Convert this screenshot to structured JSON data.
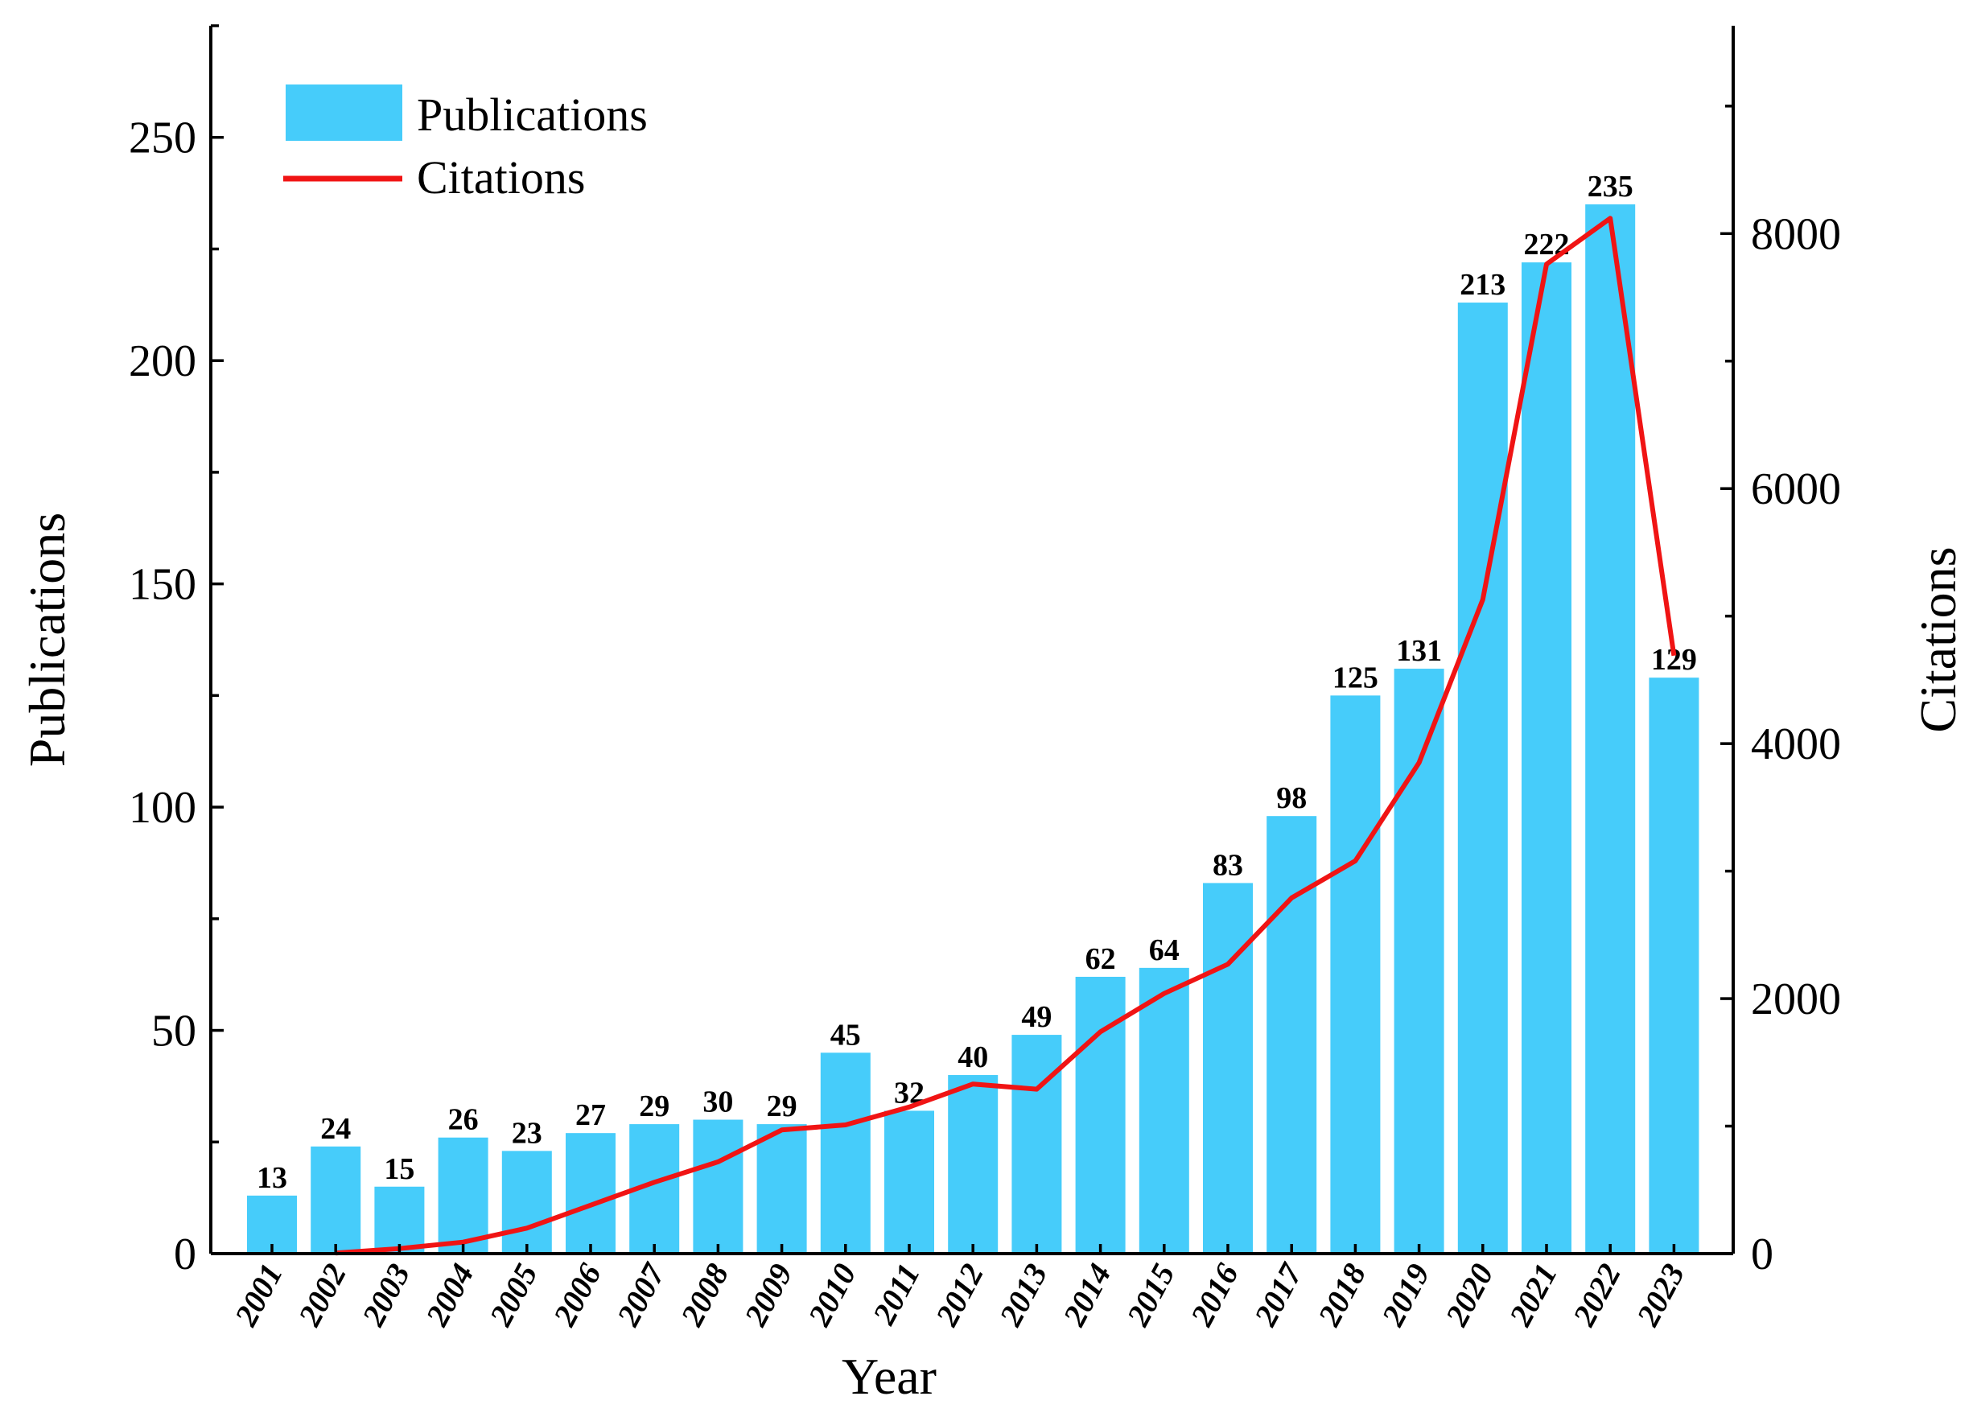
{
  "chart_data": {
    "type": "bar+line",
    "title": "",
    "xlabel": "Year",
    "ylabel_left": "Publications",
    "ylabel_right": "Citations",
    "categories": [
      "2001",
      "2002",
      "2003",
      "2004",
      "2005",
      "2006",
      "2007",
      "2008",
      "2009",
      "2010",
      "2011",
      "2012",
      "2013",
      "2014",
      "2015",
      "2016",
      "2017",
      "2018",
      "2019",
      "2020",
      "2021",
      "2022",
      "2023"
    ],
    "series": [
      {
        "name": "Publications",
        "type": "bar",
        "axis": "left",
        "color": "#46CCFA",
        "values": [
          13,
          24,
          15,
          26,
          23,
          27,
          29,
          30,
          29,
          45,
          32,
          40,
          49,
          62,
          64,
          83,
          98,
          125,
          131,
          213,
          222,
          235,
          129
        ]
      },
      {
        "name": "Citations",
        "type": "line",
        "axis": "right",
        "color": "#F01414",
        "values": [
          null,
          5,
          40,
          90,
          200,
          380,
          560,
          720,
          970,
          1010,
          1150,
          1330,
          1290,
          1740,
          2040,
          2270,
          2790,
          3080,
          3850,
          5130,
          7760,
          8120,
          4690
        ]
      }
    ],
    "ylim_left": [
      0,
      275
    ],
    "ylim_right": [
      0,
      9630
    ],
    "yticks_left": [
      0,
      50,
      100,
      150,
      200,
      250
    ],
    "yticks_right": [
      0,
      2000,
      4000,
      6000,
      8000
    ],
    "legend": [
      "Publications",
      "Citations"
    ],
    "legend_position": "top-left",
    "grid": false
  }
}
